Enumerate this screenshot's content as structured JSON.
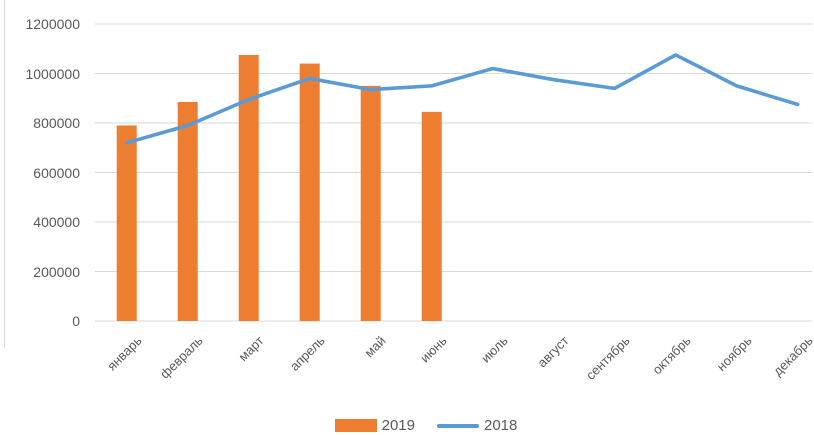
{
  "chart_data": {
    "type": "combo",
    "title": "",
    "xlabel": "",
    "ylabel": "",
    "categories": [
      "январь",
      "февраль",
      "март",
      "апрель",
      "май",
      "июнь",
      "июль",
      "август",
      "сентябрь",
      "октябрь",
      "ноябрь",
      "декабрь"
    ],
    "series": [
      {
        "name": "2019",
        "kind": "bar",
        "color": "#ED7D31",
        "values": [
          790000,
          885000,
          1075000,
          1040000,
          950000,
          845000,
          null,
          null,
          null,
          null,
          null,
          null
        ]
      },
      {
        "name": "2018",
        "kind": "line",
        "color": "#5B9BD5",
        "values": [
          720000,
          790000,
          895000,
          980000,
          935000,
          950000,
          1020000,
          975000,
          940000,
          1075000,
          950000,
          875000
        ]
      }
    ],
    "ylim": [
      0,
      1200000
    ],
    "ytick_step": 200000,
    "ytick_labels": [
      "0",
      "200000",
      "400000",
      "600000",
      "800000",
      "1000000",
      "1200000"
    ],
    "grid": true,
    "legend_position": "bottom",
    "legend_entries": [
      "2019",
      "2018"
    ]
  },
  "styles": {
    "accent_orange": "#ED7D31",
    "accent_blue": "#5B9BD5",
    "text_color": "#595959",
    "gridline_color": "#D9D9D9",
    "axis_line_color": "#D9D9D9",
    "chart_border_color": "#D9D9D9",
    "background": "#FFFFFF"
  }
}
